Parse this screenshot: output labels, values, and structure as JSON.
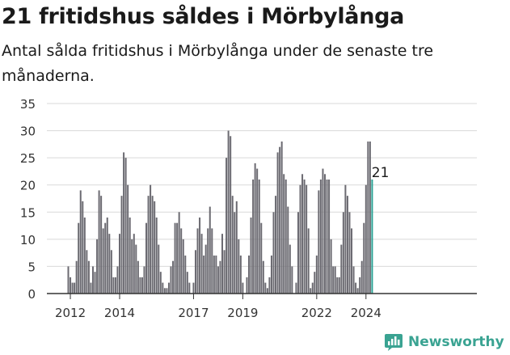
{
  "title": "21 fritidshus såldes i Mörbylånga",
  "subtitle": "Antal sålda fritidshus i Mörbylånga under de senaste tre månaderna.",
  "brand": {
    "name": "Newsworthy",
    "color": "#3aa392"
  },
  "colors": {
    "bar": "#6b6a71",
    "highlight": "#2aa295",
    "grid": "#d9d9d9",
    "axis": "#333333",
    "text": "#333333"
  },
  "chart_data": {
    "type": "bar",
    "title": "21 fritidshus såldes i Mörbylånga",
    "subtitle": "Antal sålda fritidshus i Mörbylånga under de senaste tre månaderna.",
    "xlabel": "",
    "ylabel": "",
    "ylim": [
      0,
      35
    ],
    "yticks": [
      0,
      5,
      10,
      15,
      20,
      25,
      30,
      35
    ],
    "grid": true,
    "x_start": "2011-12",
    "x_end": "2024-08",
    "xticks": [
      {
        "label": "2012",
        "date": "2012-01"
      },
      {
        "label": "2014",
        "date": "2014-01"
      },
      {
        "label": "2017",
        "date": "2017-01"
      },
      {
        "label": "2019",
        "date": "2019-01"
      },
      {
        "label": "2022",
        "date": "2022-01"
      },
      {
        "label": "2024",
        "date": "2024-01"
      }
    ],
    "values": [
      5,
      3,
      2,
      2,
      6,
      13,
      19,
      17,
      14,
      8,
      6,
      2,
      5,
      4,
      10,
      19,
      18,
      12,
      13,
      14,
      11,
      8,
      3,
      3,
      5,
      11,
      18,
      26,
      25,
      20,
      14,
      10,
      11,
      9,
      6,
      3,
      3,
      5,
      13,
      18,
      20,
      18,
      17,
      14,
      9,
      4,
      2,
      1,
      1,
      2,
      5,
      6,
      13,
      13,
      15,
      12,
      10,
      7,
      4,
      2,
      0,
      2,
      8,
      12,
      14,
      11,
      7,
      9,
      12,
      16,
      12,
      7,
      7,
      5,
      6,
      11,
      8,
      25,
      30,
      29,
      18,
      15,
      17,
      10,
      7,
      2,
      0,
      3,
      7,
      14,
      21,
      24,
      23,
      21,
      13,
      6,
      2,
      1,
      3,
      7,
      15,
      18,
      26,
      27,
      28,
      22,
      21,
      16,
      9,
      5,
      0,
      2,
      15,
      20,
      22,
      21,
      20,
      12,
      1,
      2,
      4,
      7,
      19,
      21,
      23,
      22,
      21,
      21,
      10,
      5,
      5,
      3,
      3,
      9,
      15,
      20,
      18,
      15,
      12,
      5,
      2,
      1,
      3,
      6,
      13,
      20,
      28,
      28,
      21
    ],
    "highlight_last": true,
    "annotation": {
      "text": "21",
      "date": "2024-08",
      "value": 21
    }
  }
}
